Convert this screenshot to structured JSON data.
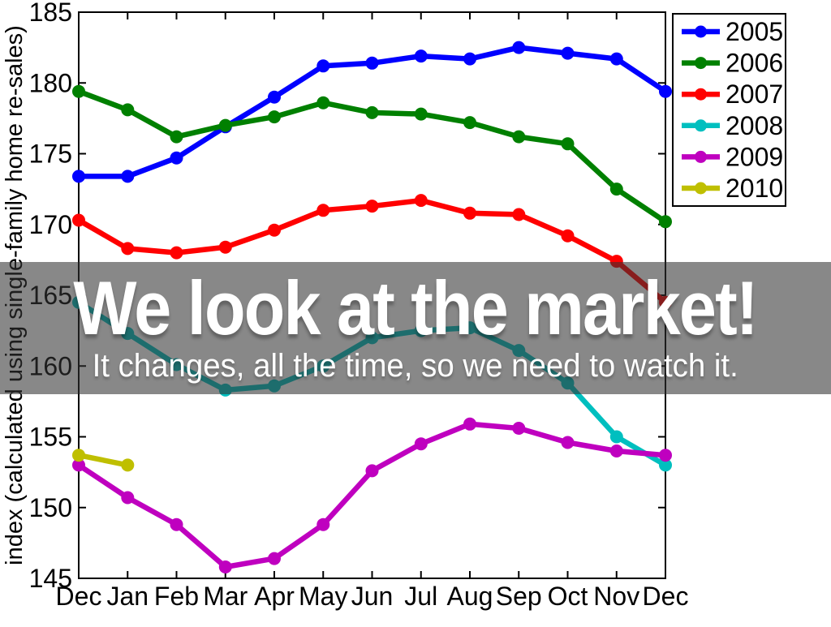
{
  "banner": {
    "title": "We look at the market!",
    "subtitle": "It changes, all the time, so we need to watch it.",
    "overlay_color": "#323232",
    "overlay_opacity": 0.58,
    "text_color": "#ffffff"
  },
  "chart_data": {
    "type": "line",
    "title": "",
    "xlabel": "",
    "ylabel": "index (calculated using single-family home re-sales)",
    "ylim": [
      145,
      185
    ],
    "y_ticks": [
      145,
      150,
      155,
      160,
      165,
      170,
      175,
      180,
      185
    ],
    "x_tick_labels": [
      "Dec",
      "Jan",
      "Feb",
      "Mar",
      "Apr",
      "May",
      "Jun",
      "Jul",
      "Aug",
      "Sep",
      "Oct",
      "Nov",
      "Dec"
    ],
    "grid": false,
    "legend_position": "top-right-outside",
    "axis_color": "#000000",
    "marker": "circle",
    "series": [
      {
        "name": "2005",
        "color": "#0000ff",
        "values": [
          173.4,
          173.4,
          174.7,
          176.9,
          179.0,
          181.2,
          181.4,
          181.9,
          181.7,
          182.5,
          182.1,
          181.7,
          179.4
        ]
      },
      {
        "name": "2006",
        "color": "#008000",
        "values": [
          179.4,
          178.1,
          176.2,
          177.0,
          177.6,
          178.6,
          177.9,
          177.8,
          177.2,
          176.2,
          175.7,
          172.5,
          170.2
        ]
      },
      {
        "name": "2007",
        "color": "#ff0000",
        "values": [
          170.3,
          168.3,
          168.0,
          168.4,
          169.6,
          171.0,
          171.3,
          171.7,
          170.8,
          170.7,
          169.2,
          167.4,
          164.5
        ]
      },
      {
        "name": "2008",
        "color": "#00bfbf",
        "values": [
          164.5,
          162.3,
          160.1,
          158.3,
          158.6,
          160.0,
          162.0,
          162.5,
          162.7,
          161.1,
          158.8,
          155.0,
          153.0
        ]
      },
      {
        "name": "2009",
        "color": "#bf00bf",
        "values": [
          153.0,
          150.7,
          148.8,
          145.8,
          146.4,
          148.8,
          152.6,
          154.5,
          155.9,
          155.6,
          154.6,
          154.0,
          153.7
        ]
      },
      {
        "name": "2010",
        "color": "#bfbf00",
        "values": [
          153.7,
          153.0,
          null,
          null,
          null,
          null,
          null,
          null,
          null,
          null,
          null,
          null,
          null
        ]
      }
    ]
  }
}
